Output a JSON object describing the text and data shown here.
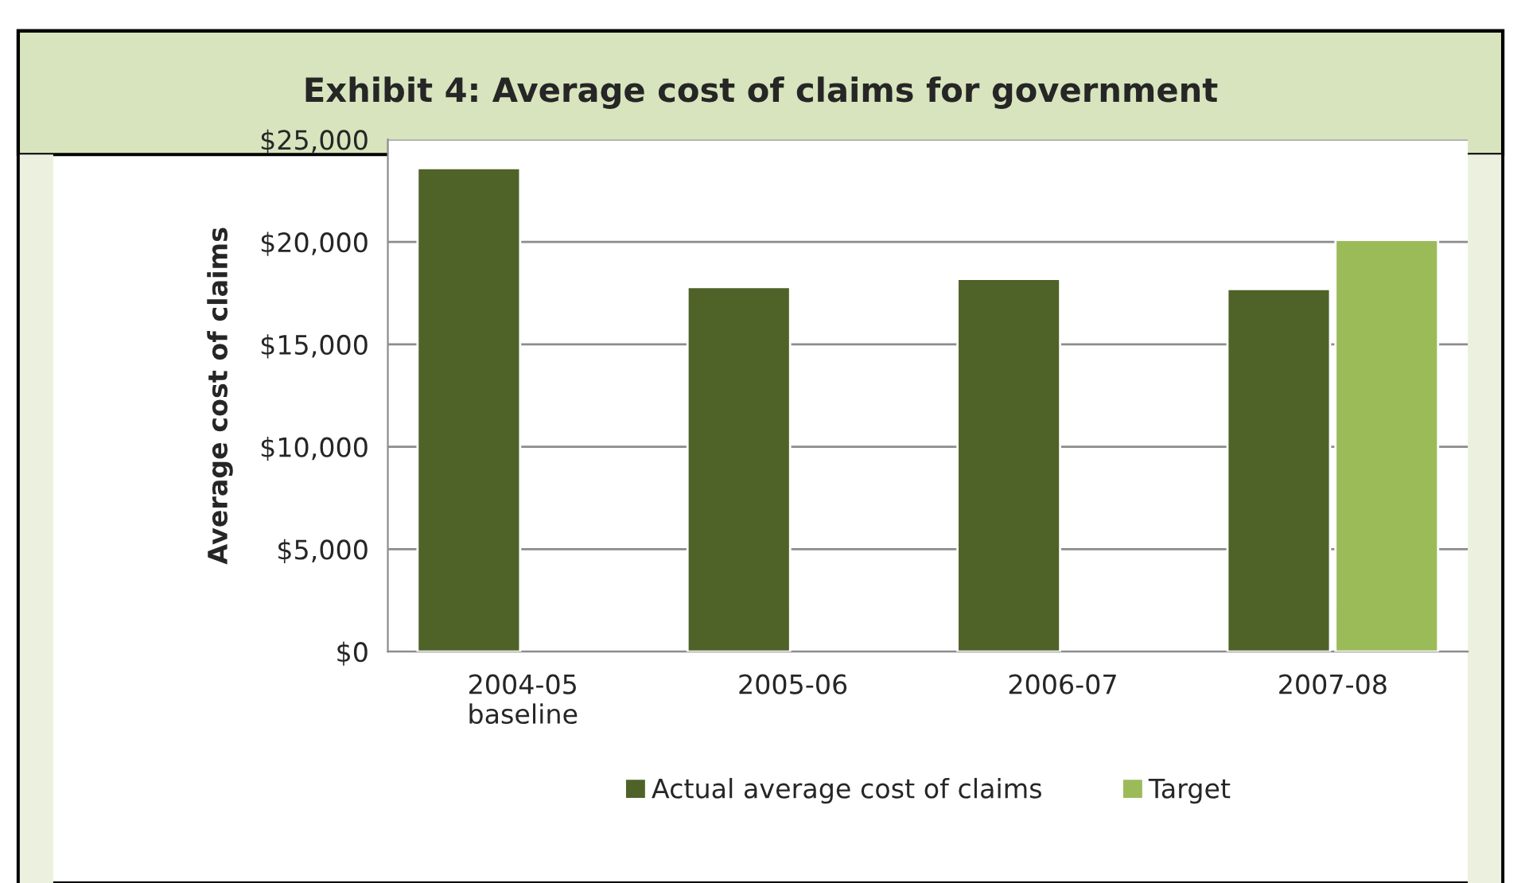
{
  "chart_data": {
    "type": "bar",
    "title": "Exhibit 4: Average cost of claims for government",
    "ylabel": "Average cost of claims",
    "categories": [
      "2004-05\nbaseline",
      "2005-06",
      "2006-07",
      "2007-08"
    ],
    "series": [
      {
        "name": "Actual average cost of claims",
        "color": "#4f6228",
        "values": [
          23600,
          17800,
          18200,
          17700
        ]
      },
      {
        "name": "Target",
        "color": "#9bbb59",
        "values": [
          null,
          null,
          null,
          20100
        ]
      }
    ],
    "ylim": [
      0,
      25000
    ],
    "yticks": [
      {
        "value": 0,
        "label": "$0"
      },
      {
        "value": 5000,
        "label": "$5,000"
      },
      {
        "value": 10000,
        "label": "$10,000"
      },
      {
        "value": 15000,
        "label": "$15,000"
      },
      {
        "value": 20000,
        "label": "$20,000"
      },
      {
        "value": 25000,
        "label": "$25,000"
      }
    ],
    "grid": "y",
    "legend": "bottom"
  }
}
